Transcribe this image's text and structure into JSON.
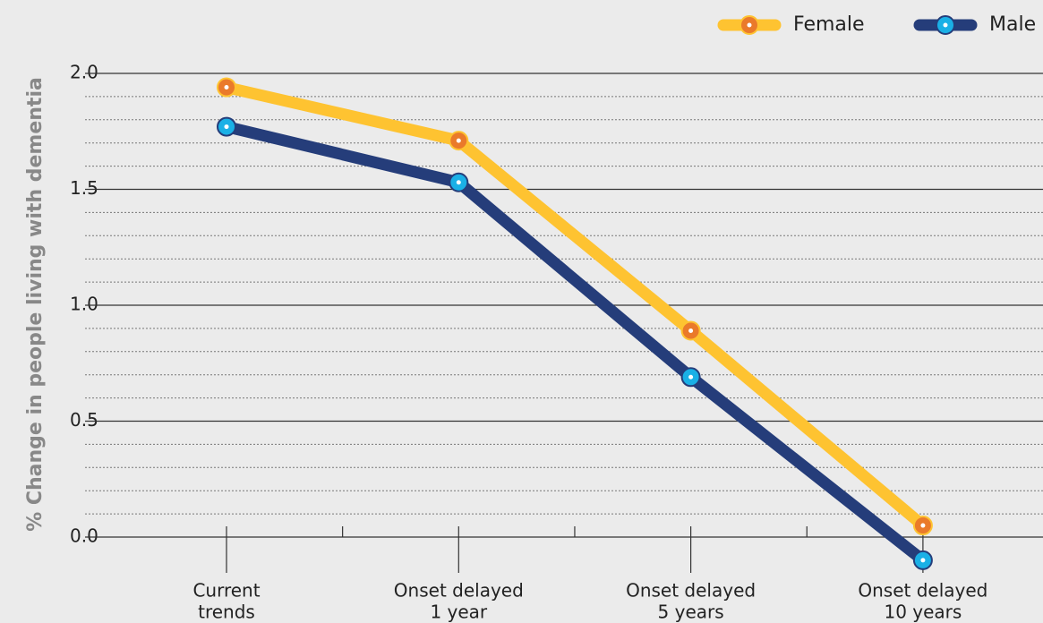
{
  "chart_data": {
    "type": "line",
    "ylabel": "% Change in people living with dementia",
    "categories": [
      [
        "Current",
        "trends"
      ],
      [
        "Onset delayed",
        "1 year"
      ],
      [
        "Onset delayed",
        "5 years"
      ],
      [
        "Onset delayed",
        "10 years"
      ]
    ],
    "series": [
      {
        "name": "Female",
        "color": "#fec331",
        "marker_color": "#ea7a2a",
        "values": [
          1.94,
          1.71,
          0.89,
          0.05
        ]
      },
      {
        "name": "Male",
        "color": "#253d7a",
        "marker_color": "#1ab0e6",
        "values": [
          1.77,
          1.53,
          0.69,
          -0.1
        ]
      }
    ],
    "ylim": [
      0,
      2
    ],
    "yticks": [
      {
        "value": 0,
        "label": "0.0"
      },
      {
        "value": 0.5,
        "label": "0.5"
      },
      {
        "value": 1,
        "label": "1.0"
      },
      {
        "value": 1.5,
        "label": "1.5"
      },
      {
        "value": 2,
        "label": "2.0"
      }
    ],
    "minor_yticks": [
      0.1,
      0.2,
      0.3,
      0.4,
      0.6,
      0.7,
      0.8,
      0.9,
      1.1,
      1.2,
      1.3,
      1.4,
      1.6,
      1.7,
      1.8,
      1.9
    ],
    "grid": true,
    "legend": "top-right"
  }
}
